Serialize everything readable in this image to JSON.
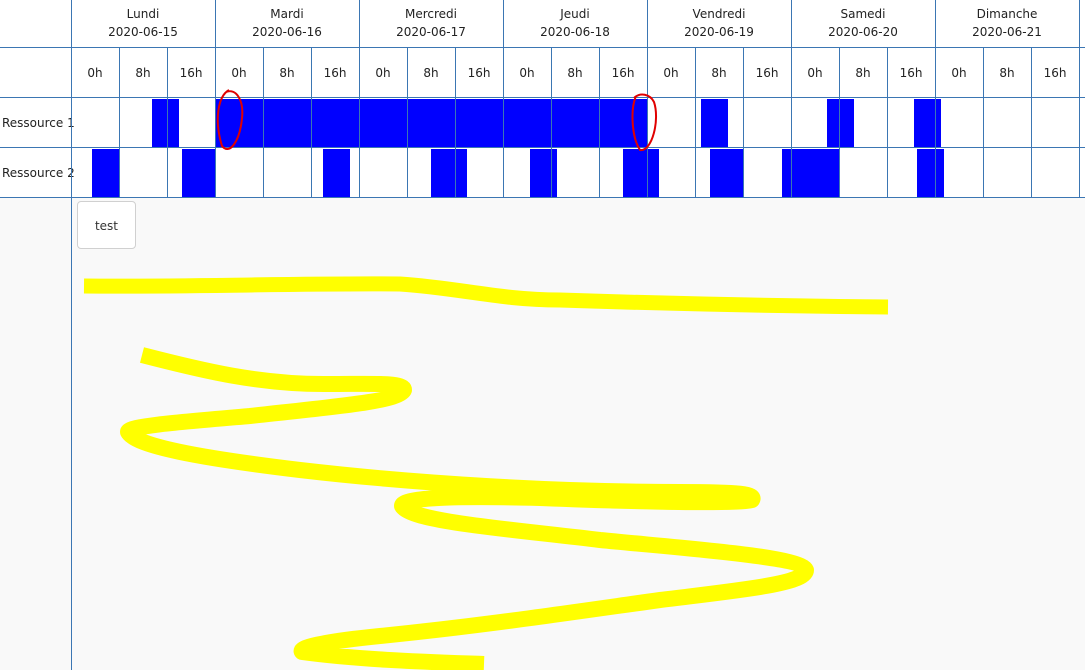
{
  "days": [
    {
      "name": "Lundi",
      "date": "2020-06-15"
    },
    {
      "name": "Mardi",
      "date": "2020-06-16"
    },
    {
      "name": "Mercredi",
      "date": "2020-06-17"
    },
    {
      "name": "Jeudi",
      "date": "2020-06-18"
    },
    {
      "name": "Vendredi",
      "date": "2020-06-19"
    },
    {
      "name": "Samedi",
      "date": "2020-06-20"
    },
    {
      "name": "Dimanche",
      "date": "2020-06-21"
    }
  ],
  "hour_labels": [
    "0h",
    "8h",
    "16h"
  ],
  "resources": [
    {
      "label": "Ressource 1",
      "bars": [
        {
          "day": 0,
          "start": 13.5,
          "end": 18
        },
        {
          "day": 1,
          "start": 0,
          "end": 0
        },
        {
          "day": 1,
          "start": 0,
          "end": 24
        },
        {
          "day": 2,
          "start": 0,
          "end": 24
        },
        {
          "day": 3,
          "start": 0,
          "end": 24
        },
        {
          "day": 4,
          "start": 9,
          "end": 13.5
        },
        {
          "day": 5,
          "start": 6,
          "end": 10.5
        },
        {
          "day": 5,
          "start": 20.5,
          "end": 25
        }
      ]
    },
    {
      "label": "Ressource 2",
      "bars": [
        {
          "day": 0,
          "start": 3.5,
          "end": 8
        },
        {
          "day": 0,
          "start": 18.5,
          "end": 24
        },
        {
          "day": 1,
          "start": 18,
          "end": 22.5
        },
        {
          "day": 2,
          "start": 12,
          "end": 18
        },
        {
          "day": 3,
          "start": 4.5,
          "end": 9
        },
        {
          "day": 3,
          "start": 20,
          "end": 26
        },
        {
          "day": 4,
          "start": 10.5,
          "end": 16
        },
        {
          "day": 4,
          "start": 22.5,
          "end": 28
        },
        {
          "day": 5,
          "start": 2,
          "end": 8
        },
        {
          "day": 5,
          "start": 21,
          "end": 25.5
        }
      ]
    }
  ],
  "button": {
    "label": "test"
  },
  "colors": {
    "bar": "#0000ff",
    "grid": "#3b76b3",
    "highlight": "#ffff00",
    "circle": "#e00000"
  }
}
